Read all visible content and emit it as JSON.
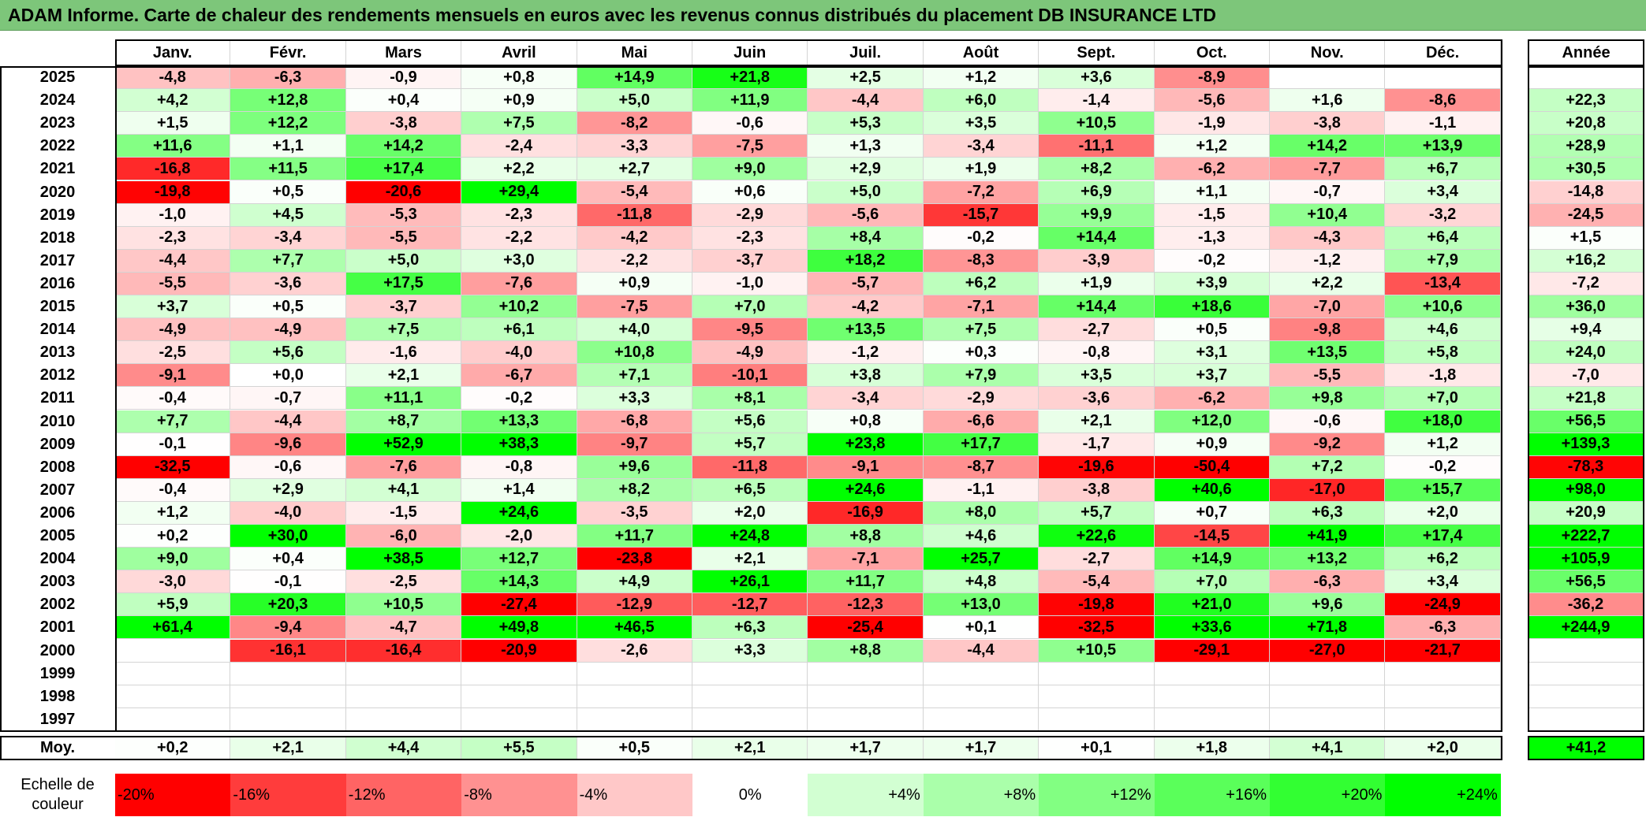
{
  "title": "ADAM Informe. Carte de chaleur des rendements mensuels en euros avec les revenus connus distribués du placement DB INSURANCE LTD",
  "chart_data": {
    "type": "heatmap",
    "title": "ADAM Informe. Carte de chaleur des rendements mensuels en euros avec les revenus connus distribués du placement DB INSURANCE LTD",
    "months": [
      "Janv.",
      "Févr.",
      "Mars",
      "Avril",
      "Mai",
      "Juin",
      "Juil.",
      "Août",
      "Sept.",
      "Oct.",
      "Nov.",
      "Déc."
    ],
    "year_header": "Année",
    "rows": [
      {
        "year": "2025",
        "values": [
          "-4,8",
          "-6,3",
          "-0,9",
          "+0,8",
          "+14,9",
          "+21,8",
          "+2,5",
          "+1,2",
          "+3,6",
          "-8,9",
          "",
          ""
        ],
        "total": ""
      },
      {
        "year": "2024",
        "values": [
          "+4,2",
          "+12,8",
          "+0,4",
          "+0,9",
          "+5,0",
          "+11,9",
          "-4,4",
          "+6,0",
          "-1,4",
          "-5,6",
          "+1,6",
          "-8,6"
        ],
        "total": "+22,3"
      },
      {
        "year": "2023",
        "values": [
          "+1,5",
          "+12,2",
          "-3,8",
          "+7,5",
          "-8,2",
          "-0,6",
          "+5,3",
          "+3,5",
          "+10,5",
          "-1,9",
          "-3,8",
          "-1,1"
        ],
        "total": "+20,8"
      },
      {
        "year": "2022",
        "values": [
          "+11,6",
          "+1,1",
          "+14,2",
          "-2,4",
          "-3,3",
          "-7,5",
          "+1,3",
          "-3,4",
          "-11,1",
          "+1,2",
          "+14,2",
          "+13,9"
        ],
        "total": "+28,9"
      },
      {
        "year": "2021",
        "values": [
          "-16,8",
          "+11,5",
          "+17,4",
          "+2,2",
          "+2,7",
          "+9,0",
          "+2,9",
          "+1,9",
          "+8,2",
          "-6,2",
          "-7,7",
          "+6,7"
        ],
        "total": "+30,5"
      },
      {
        "year": "2020",
        "values": [
          "-19,8",
          "+0,5",
          "-20,6",
          "+29,4",
          "-5,4",
          "+0,6",
          "+5,0",
          "-7,2",
          "+6,9",
          "+1,1",
          "-0,7",
          "+3,4"
        ],
        "total": "-14,8"
      },
      {
        "year": "2019",
        "values": [
          "-1,0",
          "+4,5",
          "-5,3",
          "-2,3",
          "-11,8",
          "-2,9",
          "-5,6",
          "-15,7",
          "+9,9",
          "-1,5",
          "+10,4",
          "-3,2"
        ],
        "total": "-24,5"
      },
      {
        "year": "2018",
        "values": [
          "-2,3",
          "-3,4",
          "-5,5",
          "-2,2",
          "-4,2",
          "-2,3",
          "+8,4",
          "-0,2",
          "+14,4",
          "-1,3",
          "-4,3",
          "+6,4"
        ],
        "total": "+1,5"
      },
      {
        "year": "2017",
        "values": [
          "-4,4",
          "+7,7",
          "+5,0",
          "+3,0",
          "-2,2",
          "-3,7",
          "+18,2",
          "-8,3",
          "-3,9",
          "-0,2",
          "-1,2",
          "+7,9"
        ],
        "total": "+16,2"
      },
      {
        "year": "2016",
        "values": [
          "-5,5",
          "-3,6",
          "+17,5",
          "-7,6",
          "+0,9",
          "-1,0",
          "-5,7",
          "+6,2",
          "+1,9",
          "+3,9",
          "+2,2",
          "-13,4"
        ],
        "total": "-7,2"
      },
      {
        "year": "2015",
        "values": [
          "+3,7",
          "+0,5",
          "-3,7",
          "+10,2",
          "-7,5",
          "+7,0",
          "-4,2",
          "-7,1",
          "+14,4",
          "+18,6",
          "-7,0",
          "+10,6"
        ],
        "total": "+36,0"
      },
      {
        "year": "2014",
        "values": [
          "-4,9",
          "-4,9",
          "+7,5",
          "+6,1",
          "+4,0",
          "-9,5",
          "+13,5",
          "+7,5",
          "-2,7",
          "+0,5",
          "-9,8",
          "+4,6"
        ],
        "total": "+9,4"
      },
      {
        "year": "2013",
        "values": [
          "-2,5",
          "+5,6",
          "-1,6",
          "-4,0",
          "+10,8",
          "-4,9",
          "-1,2",
          "+0,3",
          "-0,8",
          "+3,1",
          "+13,5",
          "+5,8"
        ],
        "total": "+24,0"
      },
      {
        "year": "2012",
        "values": [
          "-9,1",
          "+0,0",
          "+2,1",
          "-6,7",
          "+7,1",
          "-10,1",
          "+3,8",
          "+7,9",
          "+3,5",
          "+3,7",
          "-5,5",
          "-1,8"
        ],
        "total": "-7,0"
      },
      {
        "year": "2011",
        "values": [
          "-0,4",
          "-0,7",
          "+11,1",
          "-0,2",
          "+3,3",
          "+8,1",
          "-3,4",
          "-2,9",
          "-3,6",
          "-6,2",
          "+9,8",
          "+7,0"
        ],
        "total": "+21,8"
      },
      {
        "year": "2010",
        "values": [
          "+7,7",
          "-4,4",
          "+8,7",
          "+13,3",
          "-6,8",
          "+5,6",
          "+0,8",
          "-6,6",
          "+2,1",
          "+12,0",
          "-0,6",
          "+18,0"
        ],
        "total": "+56,5"
      },
      {
        "year": "2009",
        "values": [
          "-0,1",
          "-9,6",
          "+52,9",
          "+38,3",
          "-9,7",
          "+5,7",
          "+23,8",
          "+17,7",
          "-1,7",
          "+0,9",
          "-9,2",
          "+1,2"
        ],
        "total": "+139,3"
      },
      {
        "year": "2008",
        "values": [
          "-32,5",
          "-0,6",
          "-7,6",
          "-0,8",
          "+9,6",
          "-11,8",
          "-9,1",
          "-8,7",
          "-19,6",
          "-50,4",
          "+7,2",
          "-0,2"
        ],
        "total": "-78,3"
      },
      {
        "year": "2007",
        "values": [
          "-0,4",
          "+2,9",
          "+4,1",
          "+1,4",
          "+8,2",
          "+6,5",
          "+24,6",
          "-1,1",
          "-3,8",
          "+40,6",
          "-17,0",
          "+15,7"
        ],
        "total": "+98,0"
      },
      {
        "year": "2006",
        "values": [
          "+1,2",
          "-4,0",
          "-1,5",
          "+24,6",
          "-3,5",
          "+2,0",
          "-16,9",
          "+8,0",
          "+5,7",
          "+0,7",
          "+6,3",
          "+2,0"
        ],
        "total": "+20,9"
      },
      {
        "year": "2005",
        "values": [
          "+0,2",
          "+30,0",
          "-6,0",
          "-2,0",
          "+11,7",
          "+24,8",
          "+8,8",
          "+4,6",
          "+22,6",
          "-14,5",
          "+41,9",
          "+17,4"
        ],
        "total": "+222,7"
      },
      {
        "year": "2004",
        "values": [
          "+9,0",
          "+0,4",
          "+38,5",
          "+12,7",
          "-23,8",
          "+2,1",
          "-7,1",
          "+25,7",
          "-2,7",
          "+14,9",
          "+13,2",
          "+6,2"
        ],
        "total": "+105,9"
      },
      {
        "year": "2003",
        "values": [
          "-3,0",
          "-0,1",
          "-2,5",
          "+14,3",
          "+4,9",
          "+26,1",
          "+11,7",
          "+4,8",
          "-5,4",
          "+7,0",
          "-6,3",
          "+3,4"
        ],
        "total": "+56,5"
      },
      {
        "year": "2002",
        "values": [
          "+5,9",
          "+20,3",
          "+10,5",
          "-27,4",
          "-12,9",
          "-12,7",
          "-12,3",
          "+13,0",
          "-19,8",
          "+21,0",
          "+9,6",
          "-24,9"
        ],
        "total": "-36,2"
      },
      {
        "year": "2001",
        "values": [
          "+61,4",
          "-9,4",
          "-4,7",
          "+49,8",
          "+46,5",
          "+6,3",
          "-25,4",
          "+0,1",
          "-32,5",
          "+33,6",
          "+71,8",
          "-6,3"
        ],
        "total": "+244,9"
      },
      {
        "year": "2000",
        "values": [
          "",
          "-16,1",
          "-16,4",
          "-20,9",
          "-2,6",
          "+3,3",
          "+8,8",
          "-4,4",
          "+10,5",
          "-29,1",
          "-27,0",
          "-21,7"
        ],
        "total": ""
      },
      {
        "year": "1999",
        "values": [
          "",
          "",
          "",
          "",
          "",
          "",
          "",
          "",
          "",
          "",
          "",
          ""
        ],
        "total": ""
      },
      {
        "year": "1998",
        "values": [
          "",
          "",
          "",
          "",
          "",
          "",
          "",
          "",
          "",
          "",
          "",
          ""
        ],
        "total": ""
      },
      {
        "year": "1997",
        "values": [
          "",
          "",
          "",
          "",
          "",
          "",
          "",
          "",
          "",
          "",
          "",
          ""
        ],
        "total": ""
      }
    ],
    "average": {
      "label": "Moy.",
      "values": [
        "+0,2",
        "+2,1",
        "+4,4",
        "+5,5",
        "+0,5",
        "+2,1",
        "+1,7",
        "+1,7",
        "+0,1",
        "+1,8",
        "+4,1",
        "+2,0"
      ],
      "total": "+41,2"
    },
    "color_scale": {
      "label": "Echelle de couleur",
      "stops": [
        "-20%",
        "-16%",
        "-12%",
        "-8%",
        "-4%",
        "0%",
        "+4%",
        "+8%",
        "+12%",
        "+16%",
        "+20%",
        "+24%"
      ],
      "colors": [
        "#ff0000",
        "#ff3c3c",
        "#ff6464",
        "#ff9191",
        "#ffc8c8",
        "#ffffff",
        "#d2ffd2",
        "#aaffaa",
        "#82ff82",
        "#5aff5a",
        "#32ff32",
        "#00ff00"
      ]
    }
  }
}
